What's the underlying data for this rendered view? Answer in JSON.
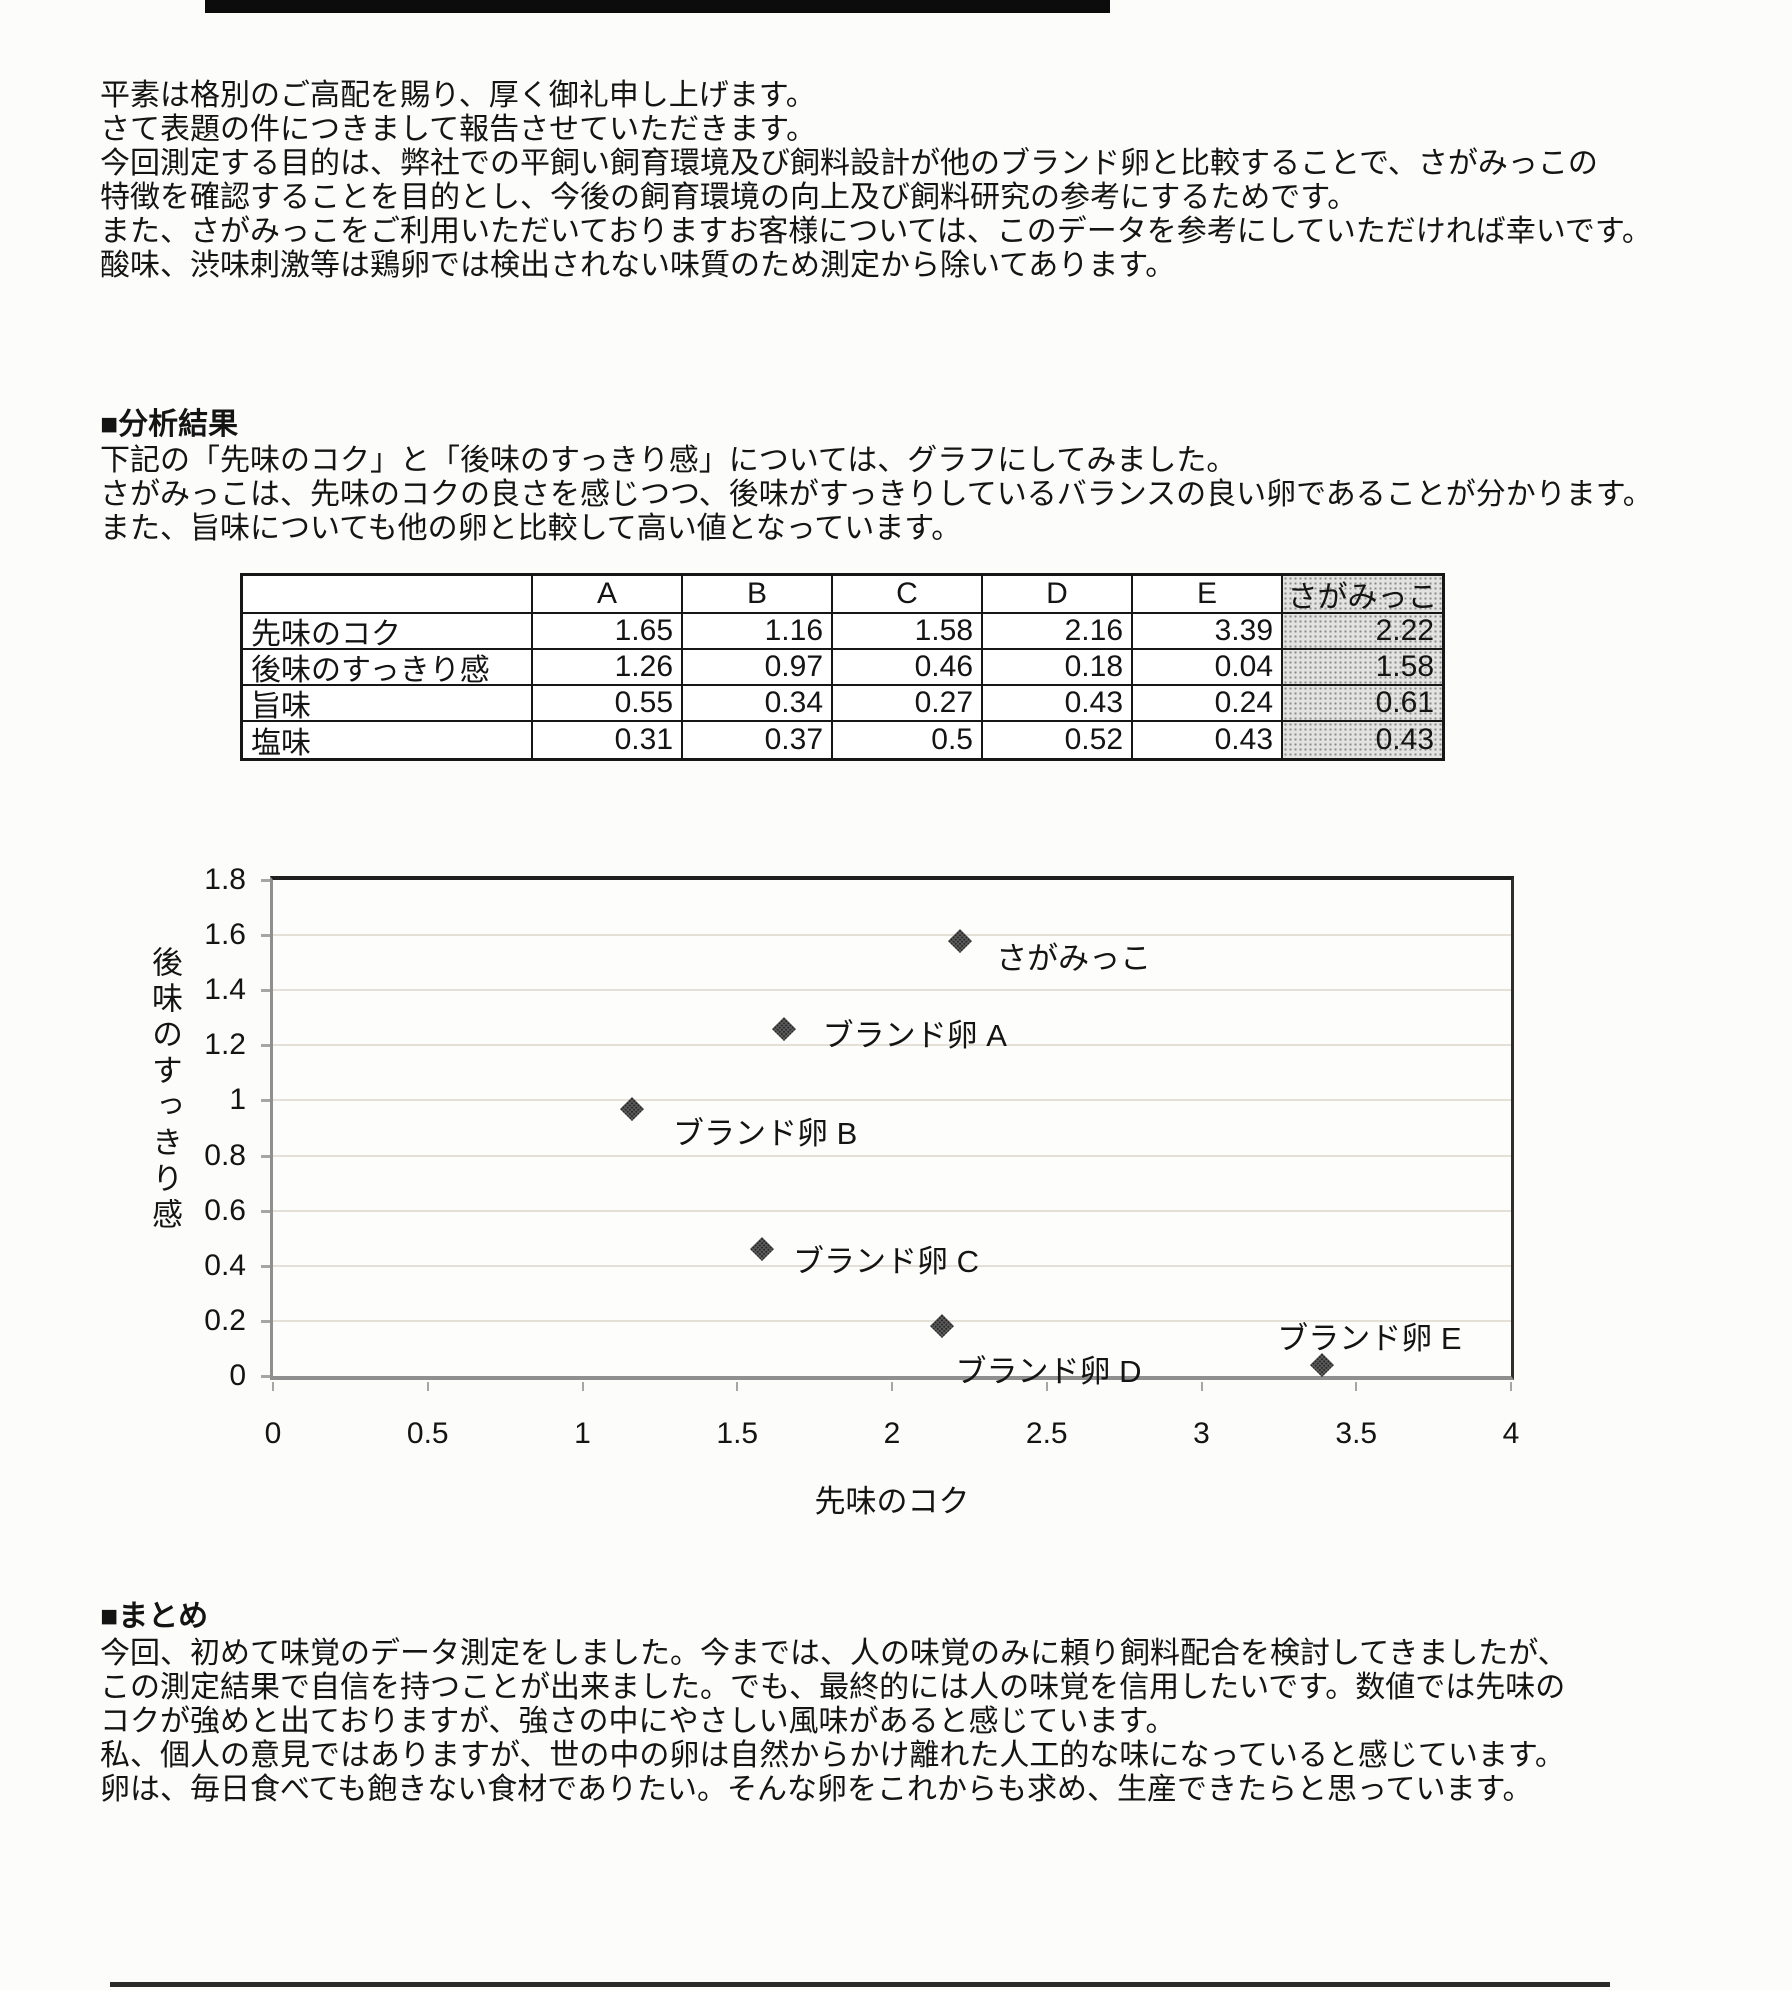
{
  "page": {
    "intro_lines": [
      "平素は格別のご高配を賜り、厚く御礼申し上げます。",
      "さて表題の件につきまして報告させていただきます。",
      "今回測定する目的は、弊社での平飼い飼育環境及び飼料設計が他のブランド卵と比較することで、さがみっこの",
      "特徴を確認することを目的とし、今後の飼育環境の向上及び飼料研究の参考にするためです。",
      "また、さがみっこをご利用いただいておりますお客様については、このデータを参考にしていただければ幸いです。",
      "酸味、渋味刺激等は鶏卵では検出されない味質のため測定から除いてあります。"
    ],
    "analysis": {
      "heading": "■分析結果",
      "lines": [
        "下記の「先味のコク」と「後味のすっきり感」については、グラフにしてみました。",
        "さがみっこは、先味のコクの良さを感じつつ、後味がすっきりしているバランスの良い卵であることが分かります。",
        "また、旨味についても他の卵と比較して高い値となっています。"
      ]
    },
    "summary": {
      "heading": "■まとめ",
      "lines": [
        "今回、初めて味覚のデータ測定をしました。今までは、人の味覚のみに頼り飼料配合を検討してきましたが、",
        "この測定結果で自信を持つことが出来ました。でも、最終的には人の味覚を信用したいです。数値では先味の",
        "コクが強めと出ておりますが、強さの中にやさしい風味があると感じています。",
        "私、個人の意見ではありますが、世の中の卵は自然からかけ離れた人工的な味になっていると感じています。",
        "卵は、毎日食べても飽きない食材でありたい。そんな卵をこれからも求め、生産できたらと思っています。"
      ]
    }
  },
  "table": {
    "col_headers": [
      "",
      "A",
      "B",
      "C",
      "D",
      "E",
      "さがみっこ"
    ],
    "rows": [
      {
        "label": "先味のコク",
        "values": [
          "1.65",
          "1.16",
          "1.58",
          "2.16",
          "3.39",
          "2.22"
        ]
      },
      {
        "label": "後味のすっきり感",
        "values": [
          "1.26",
          "0.97",
          "0.46",
          "0.18",
          "0.04",
          "1.58"
        ]
      },
      {
        "label": "旨味",
        "values": [
          "0.55",
          "0.34",
          "0.27",
          "0.43",
          "0.24",
          "0.61"
        ]
      },
      {
        "label": "塩味",
        "values": [
          "0.31",
          "0.37",
          "0.5",
          "0.52",
          "0.43",
          "0.43"
        ]
      }
    ],
    "highlight_column": "さがみっこ"
  },
  "chart_data": {
    "type": "scatter",
    "title": "",
    "xlabel": "先味のコク",
    "ylabel": "後味のすっきり感",
    "xlim": [
      0,
      4
    ],
    "ylim": [
      0,
      1.8
    ],
    "xtick_labels": [
      "0",
      "0.5",
      "1",
      "1.5",
      "2",
      "2.5",
      "3",
      "3.5",
      "4"
    ],
    "ytick_labels": [
      "0",
      "0.2",
      "0.4",
      "0.6",
      "0.8",
      "1",
      "1.2",
      "1.4",
      "1.6",
      "1.8"
    ],
    "grid": true,
    "legend_position": "none",
    "marker": "diamond",
    "points": [
      {
        "label": "さがみっこ",
        "x": 2.22,
        "y": 1.58
      },
      {
        "label": "ブランド卵 A",
        "x": 1.65,
        "y": 1.26
      },
      {
        "label": "ブランド卵 B",
        "x": 1.16,
        "y": 0.97
      },
      {
        "label": "ブランド卵 C",
        "x": 1.58,
        "y": 0.46
      },
      {
        "label": "ブランド卵 D",
        "x": 2.16,
        "y": 0.18
      },
      {
        "label": "ブランド卵 E",
        "x": 3.39,
        "y": 0.04
      }
    ]
  },
  "colors": {
    "text": "#141414",
    "paper": "#fcfcfb",
    "marker": "#5f5f5f",
    "grid": "#e4e0d8",
    "axis_dark": "#1f1f1f",
    "axis_gray": "#8f8f8f",
    "table_highlight_bg": "#e3e3e2",
    "scan_artifact": "#0c0c0c"
  }
}
